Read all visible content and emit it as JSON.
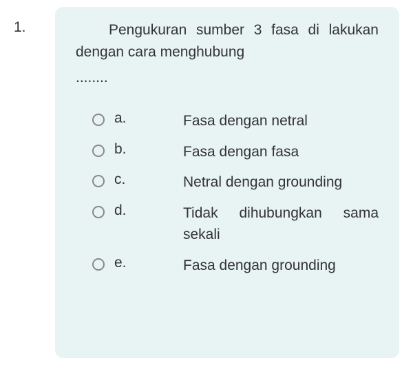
{
  "colors": {
    "card_bg": "#e8f3f3",
    "text": "#333333",
    "radio_border": "#888888",
    "page_bg": "#ffffff"
  },
  "typography": {
    "base_fontsize": 21,
    "font_family": "Arial, sans-serif"
  },
  "question": {
    "number": "1.",
    "text": "Pengukuran sumber 3 fasa di lakukan dengan cara menghubung",
    "ellipsis": "........"
  },
  "options": [
    {
      "letter": "a.",
      "text": "Fasa dengan netral"
    },
    {
      "letter": "b.",
      "text": "Fasa dengan fasa"
    },
    {
      "letter": "c.",
      "text": "Netral dengan grounding"
    },
    {
      "letter": "d.",
      "text": "Tidak dihubungkan sama sekali"
    },
    {
      "letter": "e.",
      "text": "Fasa dengan grounding"
    }
  ]
}
